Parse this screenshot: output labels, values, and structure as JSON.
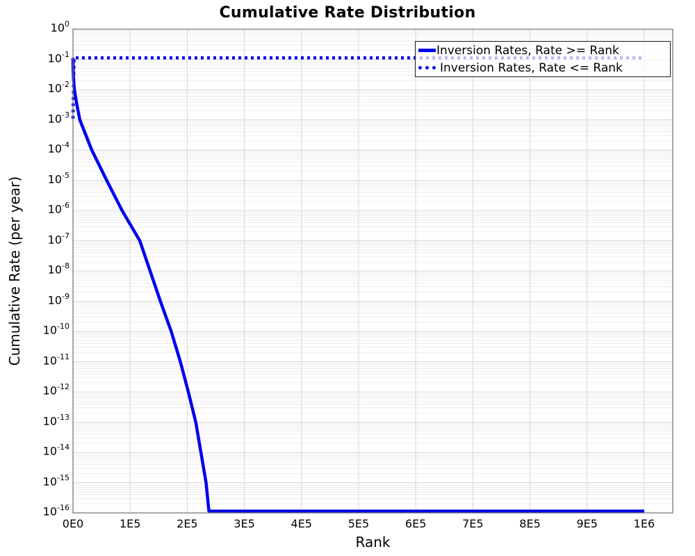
{
  "chart_data": {
    "type": "line",
    "title": "Cumulative Rate Distribution",
    "xlabel": "Rank",
    "ylabel": "Cumulative Rate (per year)",
    "x_axis": {
      "min": 0,
      "max": 1050000,
      "tick_values": [
        0,
        100000,
        200000,
        300000,
        400000,
        500000,
        600000,
        700000,
        800000,
        900000,
        1000000
      ],
      "tick_labels": [
        "0E0",
        "1E5",
        "2E5",
        "3E5",
        "4E5",
        "5E5",
        "6E5",
        "7E5",
        "8E5",
        "9E5",
        "1E6"
      ]
    },
    "y_axis": {
      "scale": "log",
      "max_exp": 0,
      "min_exp": -16,
      "tick_base": "10",
      "tick_exponents": [
        "0",
        "-1",
        "-2",
        "-3",
        "-4",
        "-5",
        "-6",
        "-7",
        "-8",
        "-9",
        "-10",
        "-11",
        "-12",
        "-13",
        "-14",
        "-15",
        "-16"
      ]
    },
    "grid": {
      "major": true,
      "minor_log": true
    },
    "legend": {
      "position": "top-right"
    },
    "colors": {
      "line": "#0000EE",
      "frame": "#7a7a7a",
      "grid_major": "#d7d7d7",
      "grid_minor": "#ececec"
    },
    "series": [
      {
        "name": "Inversion Rates, Rate >= Rank",
        "style": "solid",
        "color": "#0000EE",
        "width": 4.5,
        "points": [
          [
            0,
            0.113
          ],
          [
            300,
            0.05
          ],
          [
            1000,
            0.022
          ],
          [
            2400,
            0.01
          ],
          [
            7000,
            0.003
          ],
          [
            12000,
            0.001
          ],
          [
            33000,
            0.0001
          ],
          [
            59000,
            1e-05
          ],
          [
            86000,
            1e-06
          ],
          [
            117000,
            1e-07
          ],
          [
            135000,
            1e-08
          ],
          [
            153000,
            1e-09
          ],
          [
            172000,
            1e-10
          ],
          [
            188000,
            1e-11
          ],
          [
            202000,
            1e-12
          ],
          [
            215000,
            1e-13
          ],
          [
            224000,
            1e-14
          ],
          [
            233000,
            1e-15
          ],
          [
            238000,
            1e-16
          ],
          [
            1000000,
            1e-16
          ]
        ]
      },
      {
        "name": "Inversion Rates, Rate <= Rank",
        "style": "dotted",
        "color": "#0000EE",
        "width": 4.5,
        "points": [
          [
            0,
            0.0011
          ],
          [
            1800,
            0.113
          ],
          [
            1000000,
            0.113
          ]
        ]
      }
    ]
  }
}
